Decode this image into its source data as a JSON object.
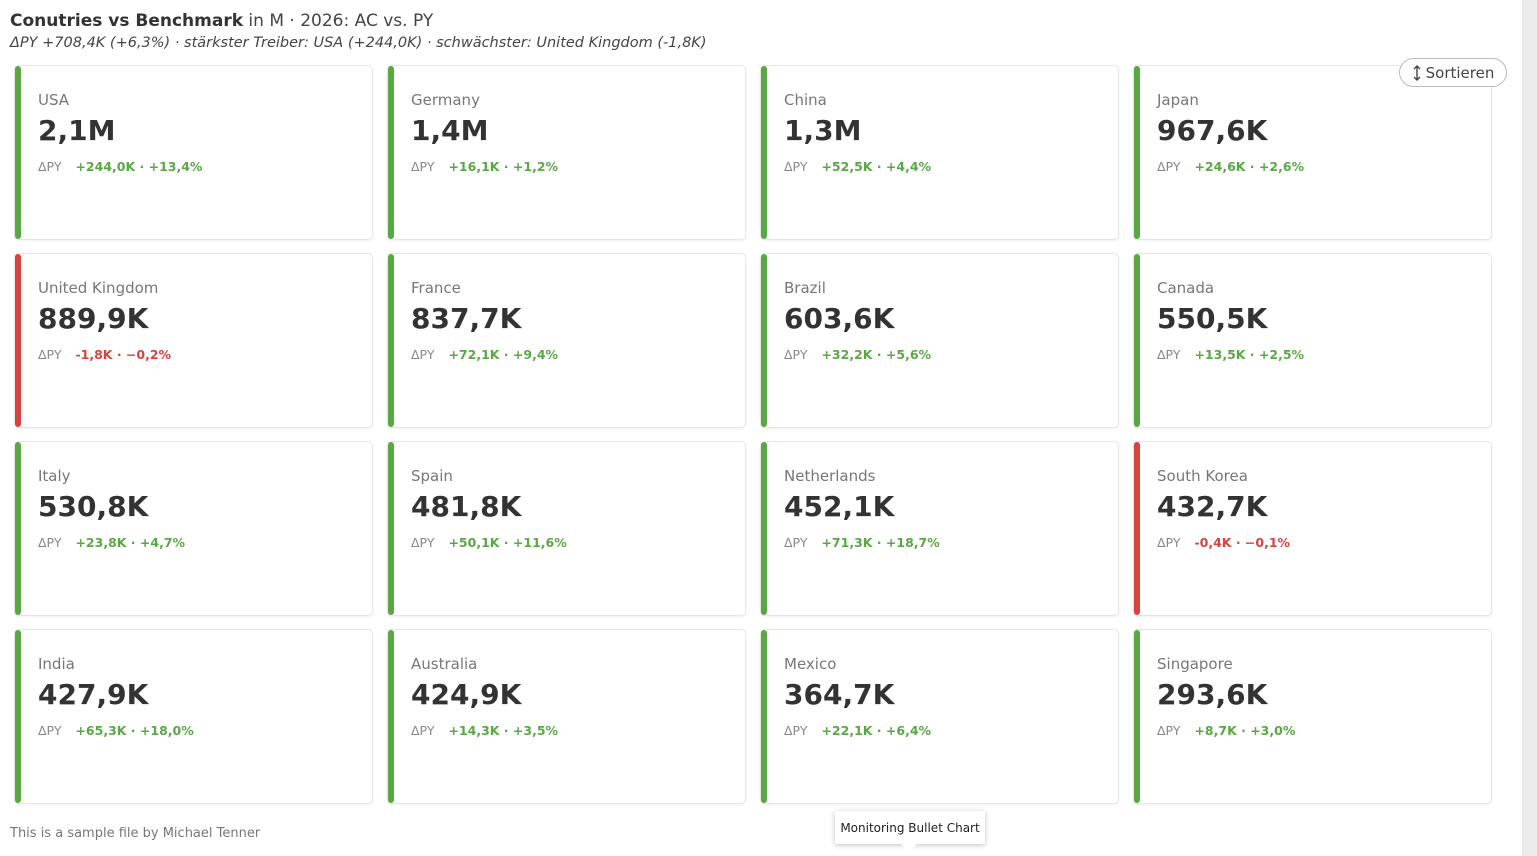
{
  "header": {
    "title_bold": "Conutries vs Benchmark",
    "title_rest": " in M · 2026: AC vs. PY",
    "subtitle": "ΔPY +708,4K (+6,3%) · stärkster Treiber: USA (+244,0K) · schwächster: United Kingdom (-1,8K)"
  },
  "sort_button": "Sortieren",
  "delta_label": "ΔPY",
  "cards": [
    {
      "name": "USA",
      "value": "2,1M",
      "delta": "+244,0K · +13,4%",
      "color": "#5aa845"
    },
    {
      "name": "Germany",
      "value": "1,4M",
      "delta": "+16,1K · +1,2%",
      "color": "#5aa845"
    },
    {
      "name": "China",
      "value": "1,3M",
      "delta": "+52,5K · +4,4%",
      "color": "#5aa845"
    },
    {
      "name": "Japan",
      "value": "967,6K",
      "delta": "+24,6K · +2,6%",
      "color": "#5aa845"
    },
    {
      "name": "United Kingdom",
      "value": "889,9K",
      "delta": "-1,8K · −0,2%",
      "color": "#d9433f"
    },
    {
      "name": "France",
      "value": "837,7K",
      "delta": "+72,1K · +9,4%",
      "color": "#5aa845"
    },
    {
      "name": "Brazil",
      "value": "603,6K",
      "delta": "+32,2K · +5,6%",
      "color": "#5aa845"
    },
    {
      "name": "Canada",
      "value": "550,5K",
      "delta": "+13,5K · +2,5%",
      "color": "#5aa845"
    },
    {
      "name": "Italy",
      "value": "530,8K",
      "delta": "+23,8K · +4,7%",
      "color": "#5aa845"
    },
    {
      "name": "Spain",
      "value": "481,8K",
      "delta": "+50,1K · +11,6%",
      "color": "#5aa845"
    },
    {
      "name": "Netherlands",
      "value": "452,1K",
      "delta": "+71,3K · +18,7%",
      "color": "#5aa845"
    },
    {
      "name": "South Korea",
      "value": "432,7K",
      "delta": "-0,4K · −0,1%",
      "color": "#d9433f"
    },
    {
      "name": "India",
      "value": "427,9K",
      "delta": "+65,3K · +18,0%",
      "color": "#5aa845"
    },
    {
      "name": "Australia",
      "value": "424,9K",
      "delta": "+14,3K · +3,5%",
      "color": "#5aa845"
    },
    {
      "name": "Mexico",
      "value": "364,7K",
      "delta": "+22,1K · +6,4%",
      "color": "#5aa845"
    },
    {
      "name": "Singapore",
      "value": "293,6K",
      "delta": "+8,7K · +3,0%",
      "color": "#5aa845"
    }
  ],
  "footer": "This is a sample file by Michael Tenner",
  "tooltip": "Monitoring Bullet Chart"
}
